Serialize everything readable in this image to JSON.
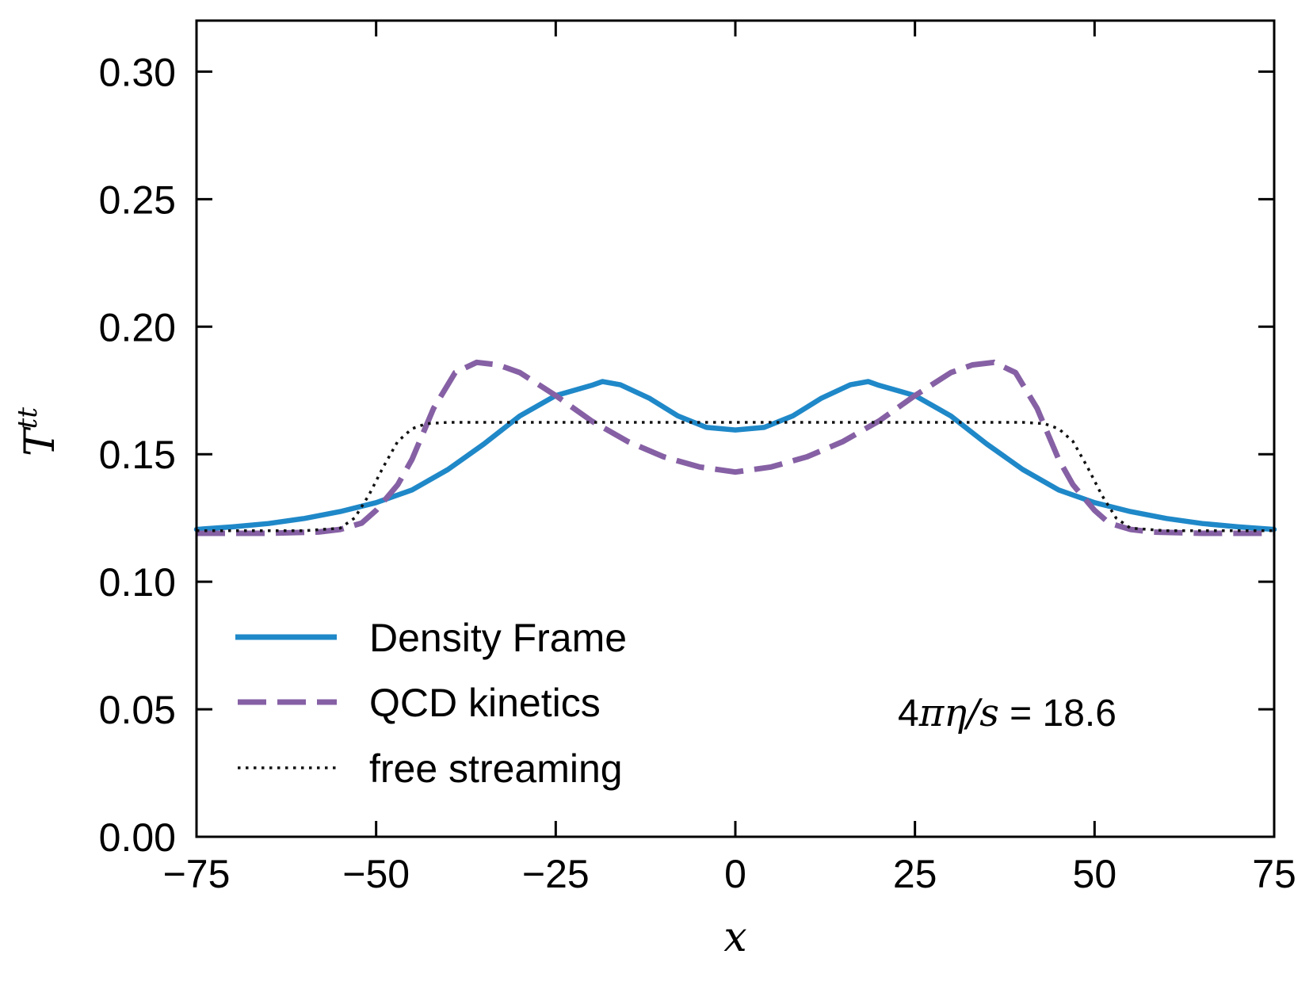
{
  "chart_data": {
    "type": "line",
    "title": "",
    "xlabel": "x",
    "ylabel": "T",
    "ylabel_superscript": "tt",
    "xlim": [
      -75,
      75
    ],
    "ylim": [
      0.0,
      0.32
    ],
    "xticks": [
      -75,
      -50,
      -25,
      0,
      25,
      50,
      75
    ],
    "xtick_labels": [
      "−75",
      "−50",
      "−25",
      "0",
      "25",
      "50",
      "75"
    ],
    "yticks": [
      0.0,
      0.05,
      0.1,
      0.15,
      0.2,
      0.25,
      0.3
    ],
    "ytick_labels": [
      "0.00",
      "0.05",
      "0.10",
      "0.15",
      "0.20",
      "0.25",
      "0.30"
    ],
    "grid": false,
    "legend_position": "lower-left",
    "annotation": {
      "prefix": "4",
      "pi": "π",
      "eta": "η",
      "slash": "/",
      "s": "s",
      "rest": " = 18.6"
    },
    "series": [
      {
        "name": "Density Frame",
        "color": "#1f88c8",
        "style": "solid",
        "x": [
          -75,
          -70,
          -65,
          -60,
          -55,
          -50,
          -45,
          -40,
          -35,
          -30,
          -25,
          -20,
          -18.5,
          -16,
          -12,
          -8,
          -4,
          0,
          4,
          8,
          12,
          16,
          18.5,
          20,
          25,
          30,
          35,
          40,
          45,
          50,
          55,
          60,
          65,
          70,
          75
        ],
        "y": [
          0.1205,
          0.1215,
          0.1228,
          0.1248,
          0.1275,
          0.131,
          0.136,
          0.144,
          0.154,
          0.165,
          0.173,
          0.177,
          0.1785,
          0.1772,
          0.172,
          0.165,
          0.1605,
          0.1595,
          0.1605,
          0.165,
          0.172,
          0.1772,
          0.1785,
          0.177,
          0.173,
          0.165,
          0.154,
          0.144,
          0.136,
          0.131,
          0.1275,
          0.1248,
          0.1228,
          0.1215,
          0.1205
        ]
      },
      {
        "name": "QCD kinetics",
        "color": "#8660a4",
        "style": "dashed",
        "x": [
          -75,
          -65,
          -58,
          -55,
          -52,
          -50,
          -47,
          -45,
          -42,
          -39,
          -36,
          -33,
          -30,
          -25,
          -20,
          -15,
          -10,
          -5,
          0,
          5,
          10,
          15,
          20,
          25,
          30,
          33,
          36,
          39,
          42,
          45,
          47,
          50,
          52,
          55,
          58,
          65,
          75
        ],
        "y": [
          0.119,
          0.119,
          0.1195,
          0.1205,
          0.123,
          0.128,
          0.138,
          0.148,
          0.168,
          0.182,
          0.186,
          0.185,
          0.182,
          0.173,
          0.163,
          0.155,
          0.149,
          0.145,
          0.143,
          0.145,
          0.149,
          0.155,
          0.163,
          0.173,
          0.182,
          0.185,
          0.186,
          0.182,
          0.168,
          0.148,
          0.138,
          0.128,
          0.123,
          0.1205,
          0.1195,
          0.119,
          0.119
        ]
      },
      {
        "name": "free streaming",
        "color": "#111111",
        "style": "dotted",
        "x": [
          -75,
          -60,
          -55,
          -53,
          -51,
          -49,
          -47,
          -45,
          -43,
          -40,
          -20,
          0,
          20,
          40,
          43,
          45,
          47,
          49,
          51,
          53,
          55,
          60,
          75
        ],
        "y": [
          0.12,
          0.12,
          0.121,
          0.125,
          0.134,
          0.145,
          0.155,
          0.16,
          0.162,
          0.1625,
          0.1625,
          0.1625,
          0.1625,
          0.1625,
          0.162,
          0.16,
          0.155,
          0.145,
          0.134,
          0.125,
          0.121,
          0.12,
          0.12
        ]
      }
    ]
  }
}
